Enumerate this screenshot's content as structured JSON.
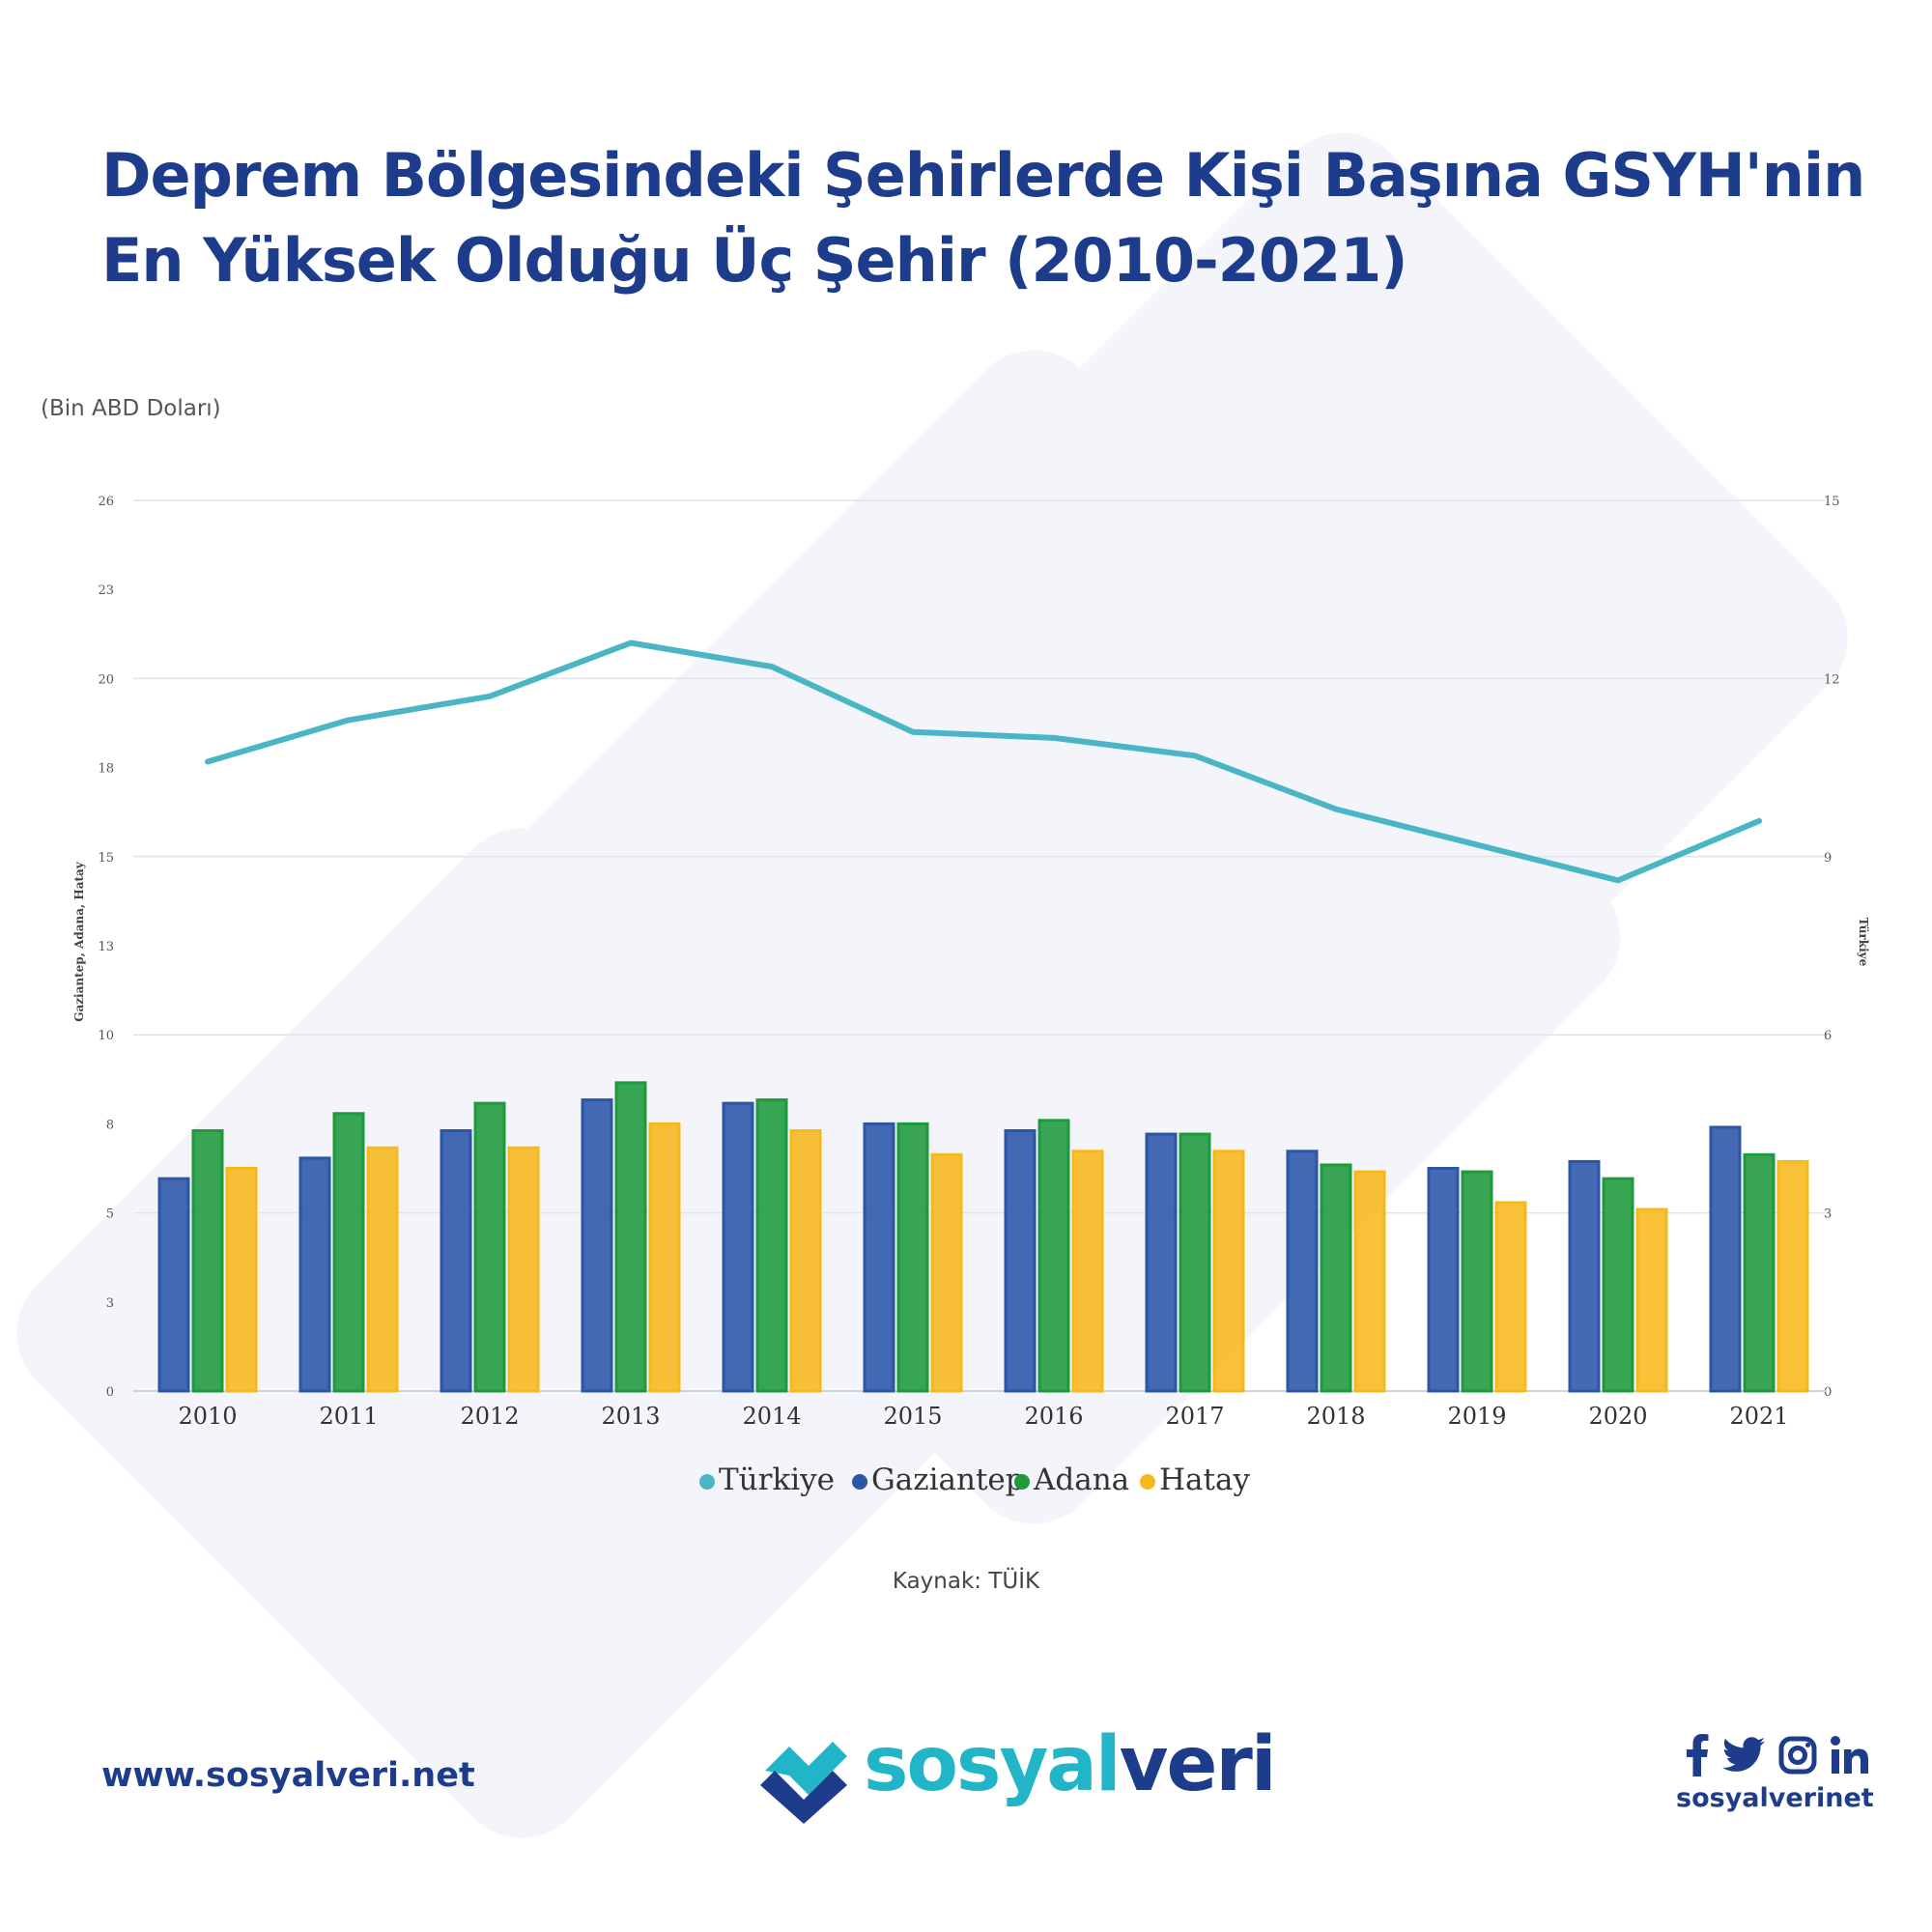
{
  "header": {
    "title_line1": "Deprem Bölgesindeki Şehirlerde Kişi Başına GSYH'nin",
    "title_line2": "En Yüksek Olduğu Üç Şehir (2010-2021)"
  },
  "unit_label": "(Bin ABD Doları)",
  "source": "Kaynak: TÜİK",
  "footer": {
    "website": "www.sosyalveri.net",
    "logo_part1": "sosyal",
    "logo_part2": "veri",
    "social_handle": "sosyalverinet"
  },
  "icons": [
    "facebook-icon",
    "twitter-icon",
    "instagram-icon",
    "linkedin-icon"
  ],
  "colors": {
    "turkiye": "#4ab5c4",
    "gaziantep": "#2b55a8",
    "adana": "#1e9a3c",
    "hatay": "#f7b81c",
    "brand_blue": "#1e3c8c",
    "brand_cyan": "#22b5c8"
  },
  "chart_data": {
    "type": "bar",
    "categories": [
      "2010",
      "2011",
      "2012",
      "2013",
      "2014",
      "2015",
      "2016",
      "2017",
      "2018",
      "2019",
      "2020",
      "2021"
    ],
    "series": [
      {
        "name": "Gaziantep",
        "type": "bar",
        "axis": "left",
        "values": [
          6.2,
          6.8,
          7.6,
          8.5,
          8.4,
          7.8,
          7.6,
          7.5,
          7.0,
          6.5,
          6.7,
          7.7
        ]
      },
      {
        "name": "Adana",
        "type": "bar",
        "axis": "left",
        "values": [
          7.6,
          8.1,
          8.4,
          9.0,
          8.5,
          7.8,
          7.9,
          7.5,
          6.6,
          6.4,
          6.2,
          6.9
        ]
      },
      {
        "name": "Hatay",
        "type": "bar",
        "axis": "left",
        "values": [
          6.5,
          7.1,
          7.1,
          7.8,
          7.6,
          6.9,
          7.0,
          7.0,
          6.4,
          5.5,
          5.3,
          6.7
        ]
      },
      {
        "name": "Türkiye",
        "type": "line",
        "axis": "right",
        "values": [
          10.6,
          11.3,
          11.7,
          12.6,
          12.2,
          11.1,
          11.0,
          10.7,
          9.8,
          9.2,
          8.6,
          9.6
        ]
      }
    ],
    "y_left": {
      "label": "Gaziantep, Adana, Hatay",
      "min": 0,
      "max": 26,
      "ticks": [
        "0",
        "3",
        "5",
        "8",
        "10",
        "13",
        "15",
        "18",
        "20",
        "23",
        "26"
      ]
    },
    "y_right": {
      "label": "Türkiye",
      "min": 0,
      "max": 15,
      "ticks": [
        "0",
        "3",
        "6",
        "9",
        "12",
        "15"
      ]
    },
    "legend": [
      "Türkiye",
      "Gaziantep",
      "Adana",
      "Hatay"
    ],
    "legend_position": "bottom",
    "grid": true
  }
}
